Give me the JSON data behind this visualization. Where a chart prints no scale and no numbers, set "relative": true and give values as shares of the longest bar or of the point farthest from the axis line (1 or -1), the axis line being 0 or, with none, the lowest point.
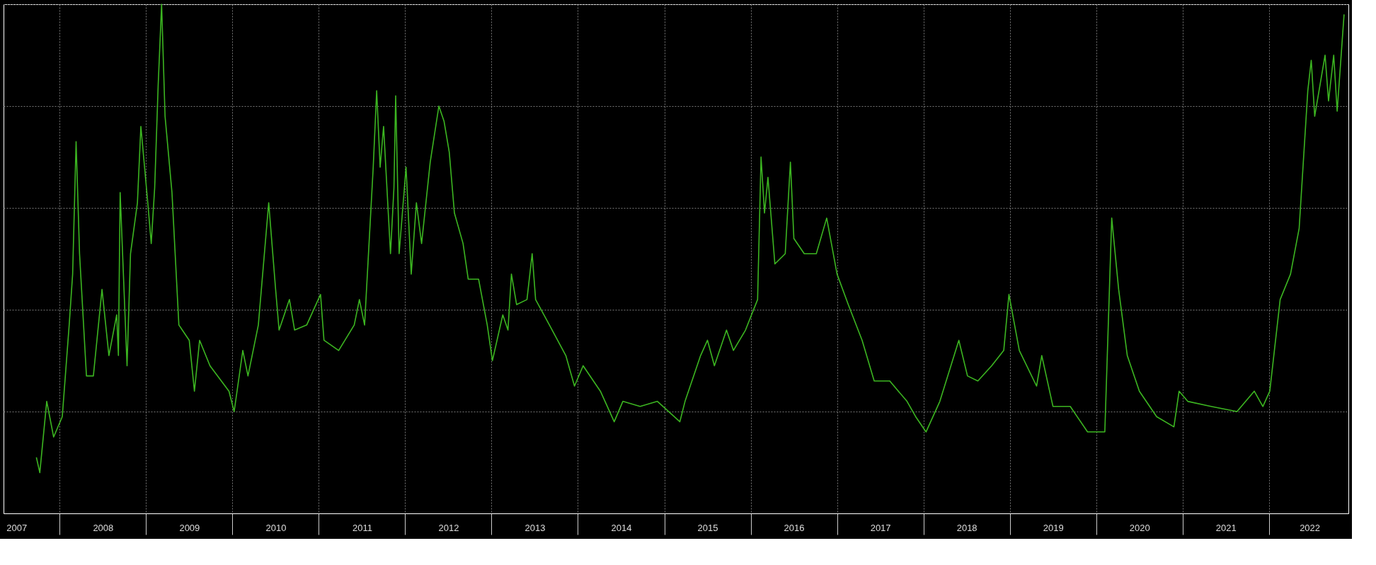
{
  "chart_data": {
    "type": "line",
    "relative": true,
    "grid": true,
    "legend": false,
    "marker": "none",
    "line_style": "solid",
    "xlim": [
      2007.35,
      2022.92
    ],
    "xticks": [
      {
        "value": 2007.5,
        "label": "2007"
      },
      {
        "value": 2008,
        "label": null
      },
      {
        "value": 2008.5,
        "label": "2008"
      },
      {
        "value": 2009,
        "label": null
      },
      {
        "value": 2009.5,
        "label": "2009"
      },
      {
        "value": 2010,
        "label": null
      },
      {
        "value": 2010.5,
        "label": "2010"
      },
      {
        "value": 2011,
        "label": null
      },
      {
        "value": 2011.5,
        "label": "2011"
      },
      {
        "value": 2012,
        "label": null
      },
      {
        "value": 2012.5,
        "label": "2012"
      },
      {
        "value": 2013,
        "label": null
      },
      {
        "value": 2013.5,
        "label": "2013"
      },
      {
        "value": 2014,
        "label": null
      },
      {
        "value": 2014.5,
        "label": "2014"
      },
      {
        "value": 2015,
        "label": null
      },
      {
        "value": 2015.5,
        "label": "2015"
      },
      {
        "value": 2016,
        "label": null
      },
      {
        "value": 2016.5,
        "label": "2016"
      },
      {
        "value": 2017,
        "label": null
      },
      {
        "value": 2017.5,
        "label": "2017"
      },
      {
        "value": 2018,
        "label": null
      },
      {
        "value": 2018.5,
        "label": "2018"
      },
      {
        "value": 2019,
        "label": null
      },
      {
        "value": 2019.5,
        "label": "2019"
      },
      {
        "value": 2020,
        "label": null
      },
      {
        "value": 2020.5,
        "label": "2020"
      },
      {
        "value": 2021,
        "label": null
      },
      {
        "value": 2021.5,
        "label": "2021"
      },
      {
        "value": 2022,
        "label": null
      },
      {
        "value": 2022.47,
        "label": "2022"
      }
    ],
    "series": [
      {
        "color": "#3cb521",
        "x": [
          2007.73,
          2007.77,
          2007.85,
          2007.93,
          2008.03,
          2008.11,
          2008.15,
          2008.19,
          2008.23,
          2008.31,
          2008.39,
          2008.49,
          2008.57,
          2008.66,
          2008.68,
          2008.7,
          2008.78,
          2008.82,
          2008.9,
          2008.94,
          2009.02,
          2009.06,
          2009.1,
          2009.14,
          2009.18,
          2009.22,
          2009.3,
          2009.38,
          2009.5,
          2009.56,
          2009.62,
          2009.74,
          2009.96,
          2010.02,
          2010.12,
          2010.18,
          2010.3,
          2010.42,
          2010.5,
          2010.54,
          2010.66,
          2010.72,
          2010.86,
          2011.02,
          2011.06,
          2011.23,
          2011.41,
          2011.47,
          2011.53,
          2011.63,
          2011.67,
          2011.71,
          2011.75,
          2011.83,
          2011.87,
          2011.89,
          2011.93,
          2012.01,
          2012.07,
          2012.13,
          2012.19,
          2012.29,
          2012.39,
          2012.45,
          2012.51,
          2012.57,
          2012.67,
          2012.73,
          2012.85,
          2012.95,
          2013.01,
          2013.13,
          2013.19,
          2013.23,
          2013.29,
          2013.41,
          2013.47,
          2013.51,
          2013.67,
          2013.86,
          2013.96,
          2014.06,
          2014.26,
          2014.42,
          2014.52,
          2014.72,
          2014.92,
          2015.18,
          2015.24,
          2015.42,
          2015.5,
          2015.58,
          2015.72,
          2015.8,
          2015.94,
          2016.08,
          2016.12,
          2016.16,
          2016.2,
          2016.28,
          2016.4,
          2016.46,
          2016.5,
          2016.62,
          2016.76,
          2016.88,
          2017.0,
          2017.13,
          2017.29,
          2017.43,
          2017.61,
          2017.81,
          2017.91,
          2018.03,
          2018.19,
          2018.41,
          2018.51,
          2018.63,
          2018.79,
          2018.93,
          2018.99,
          2019.11,
          2019.31,
          2019.37,
          2019.5,
          2019.7,
          2019.9,
          2020.1,
          2020.14,
          2020.18,
          2020.26,
          2020.36,
          2020.5,
          2020.7,
          2020.9,
          2020.96,
          2021.06,
          2021.33,
          2021.63,
          2021.83,
          2021.93,
          2022.01,
          2022.13,
          2022.25,
          2022.35,
          2022.45,
          2022.49,
          2022.53,
          2022.65,
          2022.69,
          2022.75,
          2022.79,
          2022.87
        ],
        "values": [
          0.11,
          0.08,
          0.22,
          0.15,
          0.19,
          0.37,
          0.47,
          0.73,
          0.51,
          0.27,
          0.27,
          0.44,
          0.31,
          0.39,
          0.31,
          0.63,
          0.29,
          0.51,
          0.61,
          0.76,
          0.61,
          0.53,
          0.64,
          0.84,
          1.0,
          0.78,
          0.63,
          0.37,
          0.34,
          0.24,
          0.34,
          0.29,
          0.24,
          0.2,
          0.32,
          0.27,
          0.37,
          0.61,
          0.44,
          0.36,
          0.42,
          0.36,
          0.37,
          0.43,
          0.34,
          0.32,
          0.37,
          0.42,
          0.37,
          0.68,
          0.83,
          0.68,
          0.76,
          0.51,
          0.64,
          0.82,
          0.51,
          0.68,
          0.47,
          0.61,
          0.53,
          0.69,
          0.8,
          0.77,
          0.71,
          0.59,
          0.53,
          0.46,
          0.46,
          0.37,
          0.3,
          0.39,
          0.36,
          0.47,
          0.41,
          0.42,
          0.51,
          0.42,
          0.37,
          0.31,
          0.25,
          0.29,
          0.24,
          0.18,
          0.22,
          0.21,
          0.22,
          0.18,
          0.22,
          0.31,
          0.34,
          0.29,
          0.36,
          0.32,
          0.36,
          0.42,
          0.7,
          0.59,
          0.66,
          0.49,
          0.51,
          0.69,
          0.54,
          0.51,
          0.51,
          0.58,
          0.47,
          0.41,
          0.34,
          0.26,
          0.26,
          0.22,
          0.19,
          0.16,
          0.22,
          0.34,
          0.27,
          0.26,
          0.29,
          0.32,
          0.43,
          0.32,
          0.25,
          0.31,
          0.21,
          0.21,
          0.16,
          0.16,
          0.37,
          0.58,
          0.44,
          0.31,
          0.24,
          0.19,
          0.17,
          0.24,
          0.22,
          0.21,
          0.2,
          0.24,
          0.21,
          0.24,
          0.42,
          0.47,
          0.56,
          0.83,
          0.89,
          0.78,
          0.9,
          0.81,
          0.9,
          0.79,
          0.98
        ]
      }
    ]
  }
}
